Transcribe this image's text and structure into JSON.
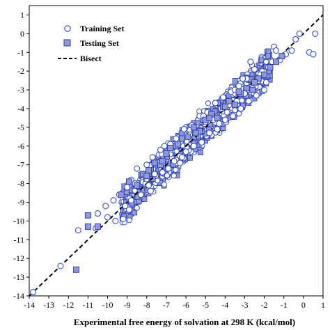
{
  "chart_data": {
    "type": "scatter",
    "title": "",
    "xlabel": "Experimental  free energy of solvation at 298 K (kcal/mol)",
    "ylabel": "",
    "xlim": [
      -14,
      1
    ],
    "ylim": [
      -14,
      1.5
    ],
    "x_ticks": [
      -14,
      -13,
      -12,
      -11,
      -10,
      -9,
      -8,
      -7,
      -6,
      -5,
      -4,
      -3,
      -2,
      -1,
      0,
      1
    ],
    "y_ticks": [
      1,
      0,
      -1,
      -2,
      -3,
      -4,
      -5,
      -6,
      -7,
      -8,
      -9,
      -10,
      -11,
      -12,
      -13,
      -14
    ],
    "grid": false,
    "legend_position": "top-left",
    "colors": {
      "training": "#3a4fc8",
      "testing_fill": "#8f99d8",
      "testing_edge": "#2a3aa8",
      "bisect": "#000000"
    },
    "series": [
      {
        "name": "Training Set",
        "marker": "open-circle",
        "x": [
          -13.8,
          -12.4,
          -11.5,
          -10.6,
          -10.5,
          -10.1,
          -10.0,
          -9.7,
          -9.6,
          -9.2,
          -9.4,
          -9.0,
          -9.1,
          -8.8,
          -8.6,
          -8.8,
          -8.3,
          -8.1,
          -8.5,
          -8.0,
          -7.9,
          -7.6,
          -7.4,
          -7.7,
          -7.2,
          -7.0,
          -7.3,
          -6.9,
          -6.6,
          -6.8,
          -6.4,
          -6.2,
          -6.5,
          -6.0,
          -5.8,
          -6.1,
          -5.6,
          -5.4,
          -5.7,
          -5.2,
          -5.0,
          -5.3,
          -4.8,
          -4.6,
          -4.9,
          -4.4,
          -4.2,
          -4.5,
          -4.0,
          -3.8,
          -4.1,
          -3.6,
          -3.4,
          -3.7,
          -3.2,
          -3.0,
          -3.3,
          -2.8,
          -2.6,
          -2.9,
          -2.4,
          -2.2,
          -2.5,
          -2.0,
          -1.8,
          -1.6,
          -1.9,
          -1.2,
          -0.9,
          -0.6,
          -0.4,
          -0.2,
          0.3,
          0.5,
          0.6,
          -1.5,
          -2.7,
          -3.5,
          -4.3,
          -5.1,
          -6.3,
          -7.1,
          -7.8,
          -8.2,
          -8.9,
          -3.9,
          -3.1,
          -2.3,
          -1.4
        ],
        "y": [
          -13.8,
          -12.4,
          -10.5,
          -10.4,
          -9.6,
          -9.2,
          -9.8,
          -8.9,
          -10.0,
          -9.9,
          -8.6,
          -8.2,
          -9.2,
          -8.9,
          -8.0,
          -7.8,
          -8.6,
          -7.6,
          -7.2,
          -7.0,
          -8.1,
          -7.5,
          -6.9,
          -6.6,
          -7.4,
          -6.4,
          -6.2,
          -7.2,
          -6.8,
          -5.9,
          -5.7,
          -6.6,
          -5.6,
          -6.3,
          -5.4,
          -5.1,
          -6.0,
          -5.2,
          -4.9,
          -5.8,
          -4.7,
          -4.4,
          -5.3,
          -4.6,
          -4.2,
          -5.1,
          -4.0,
          -3.7,
          -4.6,
          -3.8,
          -3.4,
          -4.4,
          -3.6,
          -3.1,
          -4.0,
          -3.2,
          -2.8,
          -3.6,
          -2.9,
          -2.4,
          -3.3,
          -2.2,
          -1.9,
          -3.0,
          -1.8,
          -1.5,
          -2.6,
          -1.4,
          -1.1,
          -0.9,
          -0.3,
          0.0,
          -1.0,
          -1.1,
          0.0,
          -0.7,
          -1.5,
          -3.0,
          -4.8,
          -4.4,
          -6.9,
          -6.0,
          -8.4,
          -7.5,
          -9.4,
          -4.2,
          -2.4,
          -2.5,
          -0.9
        ]
      },
      {
        "name": "Testing Set",
        "marker": "square",
        "x": [
          -11.6,
          -11.0,
          -11.0,
          -10.5,
          -9.3,
          -8.9,
          -8.5,
          -8.2,
          -7.9,
          -7.6,
          -7.3,
          -7.0,
          -6.8,
          -6.5,
          -6.2,
          -5.9,
          -5.6,
          -5.3,
          -5.0,
          -4.7,
          -4.4,
          -4.1,
          -3.8,
          -3.5,
          -3.2,
          -2.9,
          -2.6,
          -2.3,
          -2.0,
          -1.7,
          -1.4,
          -1.1,
          -8.0,
          -7.2,
          -6.4,
          -5.5,
          -4.8,
          -4.0,
          -3.3,
          -2.5
        ],
        "y": [
          -12.6,
          -9.7,
          -10.3,
          -10.3,
          -8.6,
          -7.9,
          -8.1,
          -7.5,
          -7.3,
          -6.9,
          -7.0,
          -6.4,
          -6.1,
          -6.0,
          -5.6,
          -5.5,
          -5.0,
          -5.2,
          -4.6,
          -4.3,
          -4.5,
          -3.9,
          -3.6,
          -3.8,
          -3.2,
          -2.9,
          -3.0,
          -2.4,
          -2.2,
          -1.8,
          -1.5,
          -1.2,
          -7.6,
          -6.8,
          -5.9,
          -5.3,
          -4.5,
          -3.9,
          -3.1,
          -2.6
        ]
      }
    ],
    "bisect": {
      "name": "Bisect",
      "from": [
        -14,
        -14
      ],
      "to": [
        1,
        1
      ]
    },
    "legend": {
      "training_label": "Training Set",
      "testing_label": "Testing Set",
      "bisect_label": "Bisect"
    }
  }
}
